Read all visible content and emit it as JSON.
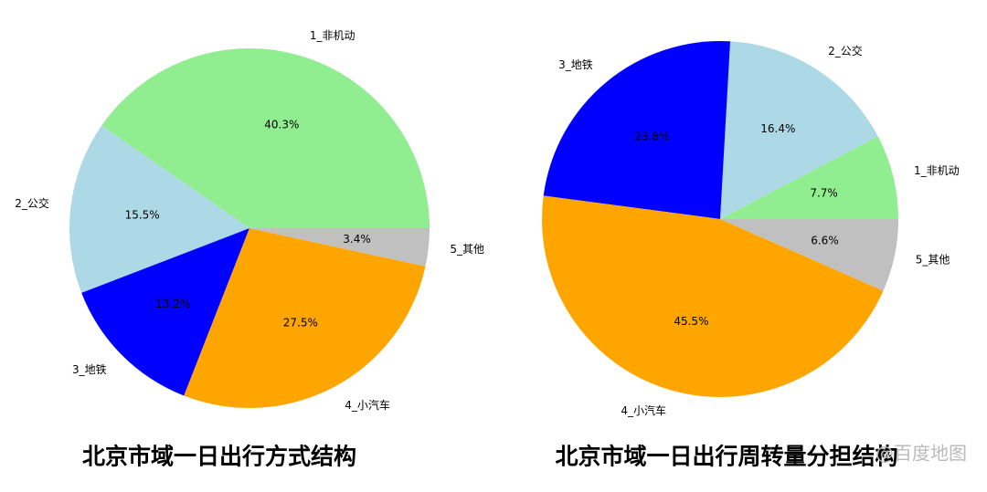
{
  "chart_data": [
    {
      "type": "pie",
      "title": "北京市域一日出行方式结构",
      "categories": [
        "1_非机动",
        "2_公交",
        "3_地铁",
        "4_小汽车",
        "5_其他"
      ],
      "values": [
        40.3,
        15.5,
        13.2,
        27.5,
        3.4
      ],
      "value_labels": [
        "40.3%",
        "15.5%",
        "13.2%",
        "27.5%",
        "3.4%"
      ],
      "colors": [
        "#90ee90",
        "#add8e6",
        "#0000ff",
        "#ffa500",
        "#c0c0c0"
      ]
    },
    {
      "type": "pie",
      "title": "北京市域一日出行周转量分担结构",
      "categories": [
        "1_非机动",
        "2_公交",
        "3_地铁",
        "4_小汽车",
        "5_其他"
      ],
      "values": [
        7.7,
        16.4,
        23.8,
        45.5,
        6.6
      ],
      "value_labels": [
        "7.7%",
        "16.4%",
        "23.8%",
        "45.5%",
        "6.6%"
      ],
      "colors": [
        "#90ee90",
        "#add8e6",
        "#0000ff",
        "#ffa500",
        "#c0c0c0"
      ]
    }
  ],
  "watermark": "@百度地图"
}
